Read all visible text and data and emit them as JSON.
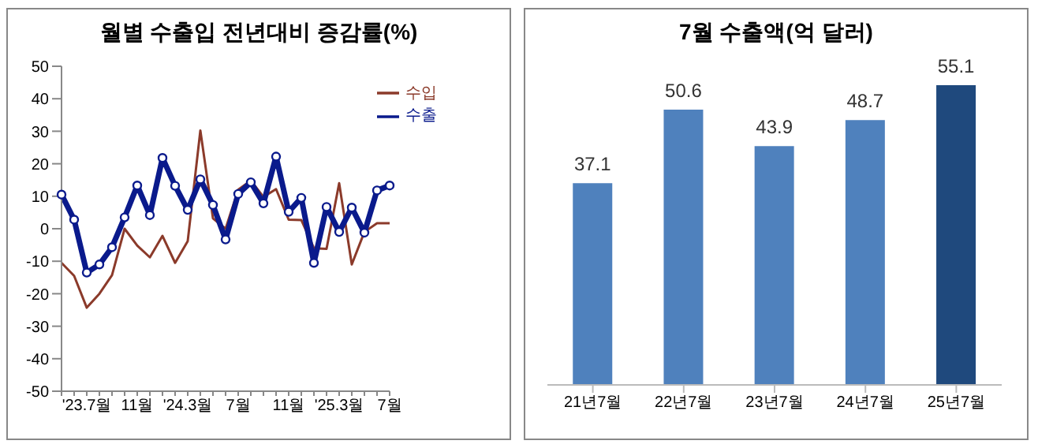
{
  "chart_data": [
    {
      "type": "line",
      "title": "월별 수출입 전년대비 증감률(%)",
      "categories": [
        null,
        null,
        "'23.7월",
        null,
        null,
        null,
        "11월",
        null,
        null,
        null,
        "'24.3월",
        null,
        null,
        null,
        "7월",
        null,
        null,
        null,
        "11월",
        null,
        null,
        null,
        "'25.3월",
        null,
        null,
        null,
        "7월"
      ],
      "ylim": [
        -50,
        50
      ],
      "yticks": [
        -50,
        -40,
        -30,
        -20,
        -10,
        0,
        10,
        20,
        30,
        40,
        50
      ],
      "grid": false,
      "legend": "top right",
      "series": [
        {
          "name": "수입",
          "color": "#8b3a2a",
          "marker": "none",
          "values": [
            -10.5,
            -14.5,
            -24.3,
            -20,
            -14.3,
            0,
            -5.2,
            -8.8,
            -2.2,
            -10.5,
            -3.8,
            30.2,
            3.2,
            0,
            12,
            14.8,
            9.8,
            12.2,
            2.8,
            2.7,
            -6,
            -6.2,
            14,
            -11,
            -1,
            1.7,
            1.7
          ]
        },
        {
          "name": "수출",
          "color": "#0a1a8c",
          "marker": "circle",
          "values": [
            10.5,
            2.8,
            -13.5,
            -11,
            -5.7,
            3.5,
            13.3,
            4.2,
            21.8,
            13.2,
            5.8,
            15.2,
            7.3,
            -3.3,
            10.7,
            14.3,
            7.8,
            22.2,
            5.2,
            9.5,
            -10.5,
            6.7,
            -1,
            6.5,
            -1.2,
            11.8,
            13.3
          ]
        }
      ]
    },
    {
      "type": "bar",
      "title": "7월 수출액(억 달러)",
      "categories": [
        "21년7월",
        "22년7월",
        "23년7월",
        "24년7월",
        "25년7월"
      ],
      "values": [
        37.1,
        50.6,
        43.9,
        48.7,
        55.1
      ],
      "colors": [
        "#4f81bd",
        "#4f81bd",
        "#4f81bd",
        "#4f81bd",
        "#1f497d"
      ],
      "data_labels": true,
      "tick_labels": "x"
    }
  ]
}
